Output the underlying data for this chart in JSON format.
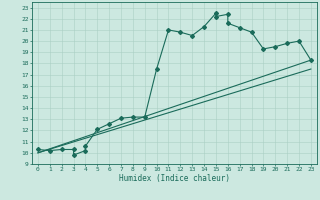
{
  "title": "",
  "xlabel": "Humidex (Indice chaleur)",
  "bg_color": "#cce8e0",
  "line_color": "#1a6b5a",
  "grid_color": "#aacfc4",
  "xlim": [
    -0.5,
    23.5
  ],
  "ylim": [
    9,
    23.5
  ],
  "xticks": [
    0,
    1,
    2,
    3,
    4,
    5,
    6,
    7,
    8,
    9,
    10,
    11,
    12,
    13,
    14,
    15,
    16,
    17,
    18,
    19,
    20,
    21,
    22,
    23
  ],
  "yticks": [
    9,
    10,
    11,
    12,
    13,
    14,
    15,
    16,
    17,
    18,
    19,
    20,
    21,
    22,
    23
  ],
  "curve_x": [
    0,
    1,
    2,
    3,
    3,
    4,
    4,
    5,
    6,
    7,
    8,
    9,
    10,
    11,
    12,
    13,
    14,
    15,
    15,
    16,
    16,
    17,
    18,
    19,
    20,
    21,
    22,
    23
  ],
  "curve_y": [
    10.3,
    10.2,
    10.3,
    10.3,
    9.8,
    10.2,
    10.6,
    12.1,
    12.6,
    13.1,
    13.2,
    13.2,
    17.5,
    21.0,
    20.8,
    20.5,
    21.3,
    22.5,
    22.2,
    22.4,
    21.6,
    21.2,
    20.8,
    19.3,
    19.5,
    19.8,
    20.0,
    18.3
  ],
  "line1_x": [
    0,
    23
  ],
  "line1_y": [
    10.0,
    17.5
  ],
  "line2_x": [
    0,
    23
  ],
  "line2_y": [
    10.0,
    18.3
  ],
  "marker": "D",
  "markersize": 2.0,
  "linewidth": 0.8,
  "tick_fontsize": 4.5,
  "xlabel_fontsize": 5.5
}
